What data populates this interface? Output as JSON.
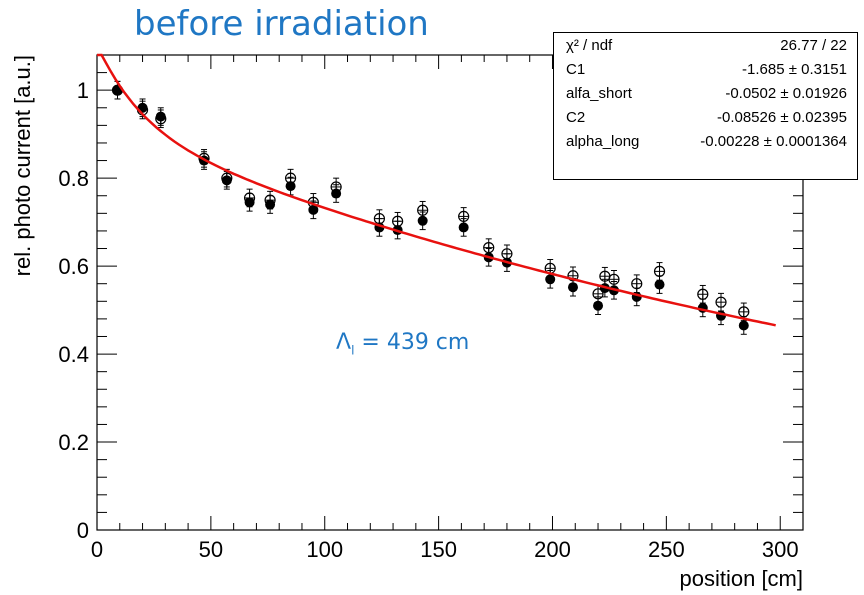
{
  "slide_title": "before irradiation",
  "annotation": {
    "symbol": "Λ",
    "subscript": "l",
    "text": " = 439 cm"
  },
  "stats_box": [
    {
      "label": "χ² / ndf",
      "value": "26.77 / 22"
    },
    {
      "label": "C1",
      "value": "-1.685 ± 0.3151"
    },
    {
      "label": "alfa_short",
      "value": "-0.0502 ± 0.01926"
    },
    {
      "label": "C2",
      "value": "-0.08526 ± 0.02395"
    },
    {
      "label": "alpha_long",
      "value": "-0.00228 ± 0.0001364"
    }
  ],
  "colors": {
    "fit": "#e8110f",
    "title": "#1f77c4",
    "markers": "#000000"
  },
  "chart_data": {
    "type": "scatter",
    "xlabel": "position [cm]",
    "ylabel": "rel. photo current [a.u.]",
    "xlim": [
      0,
      310
    ],
    "ylim": [
      0,
      1.08
    ],
    "xticks": [
      0,
      50,
      100,
      150,
      200,
      250,
      300
    ],
    "xtick_labels": [
      "0",
      "50",
      "100",
      "150",
      "200",
      "250",
      "300"
    ],
    "yticks": [
      0,
      0.2,
      0.4,
      0.6,
      0.8,
      1.0
    ],
    "ytick_labels": [
      "0",
      "0.2",
      "0.4",
      "0.6",
      "0.8",
      "1"
    ],
    "grid": false,
    "series": [
      {
        "marker": "filled",
        "x": [
          9,
          20,
          28,
          47,
          57,
          67,
          76,
          85,
          95,
          105,
          124,
          132,
          143,
          161,
          172,
          180,
          199,
          209,
          220,
          223,
          227,
          237,
          247,
          266,
          274,
          284
        ],
        "y": [
          1.0,
          0.96,
          0.94,
          0.84,
          0.795,
          0.745,
          0.74,
          0.782,
          0.728,
          0.765,
          0.688,
          0.682,
          0.703,
          0.688,
          0.62,
          0.608,
          0.57,
          0.552,
          0.51,
          0.55,
          0.545,
          0.53,
          0.558,
          0.505,
          0.487,
          0.465
        ],
        "err": [
          0.02,
          0.02,
          0.02,
          0.02,
          0.02,
          0.02,
          0.02,
          0.02,
          0.02,
          0.02,
          0.02,
          0.02,
          0.02,
          0.02,
          0.02,
          0.02,
          0.02,
          0.02,
          0.02,
          0.02,
          0.02,
          0.02,
          0.02,
          0.02,
          0.02,
          0.02
        ]
      },
      {
        "marker": "open",
        "x": [
          9,
          20,
          28,
          47,
          57,
          67,
          76,
          85,
          95,
          105,
          124,
          132,
          143,
          161,
          172,
          180,
          199,
          209,
          220,
          223,
          227,
          237,
          247,
          266,
          274,
          284
        ],
        "y": [
          1.0,
          0.955,
          0.935,
          0.845,
          0.8,
          0.755,
          0.75,
          0.8,
          0.745,
          0.78,
          0.708,
          0.702,
          0.727,
          0.713,
          0.642,
          0.628,
          0.595,
          0.578,
          0.537,
          0.577,
          0.57,
          0.56,
          0.588,
          0.536,
          0.518,
          0.496
        ],
        "err": [
          0.02,
          0.02,
          0.02,
          0.02,
          0.02,
          0.02,
          0.02,
          0.02,
          0.02,
          0.02,
          0.02,
          0.02,
          0.02,
          0.02,
          0.02,
          0.02,
          0.02,
          0.02,
          0.02,
          0.02,
          0.02,
          0.02,
          0.02,
          0.02,
          0.02,
          0.02
        ]
      }
    ],
    "fit": {
      "formula": "exp(C1 + alfa_short*x) + exp(C2 + alpha_long*x)",
      "params": {
        "C1": -1.685,
        "alfa_short": -0.0502,
        "C2": -0.08526,
        "alpha_long": -0.00228
      },
      "x_range": [
        0,
        298
      ]
    }
  }
}
